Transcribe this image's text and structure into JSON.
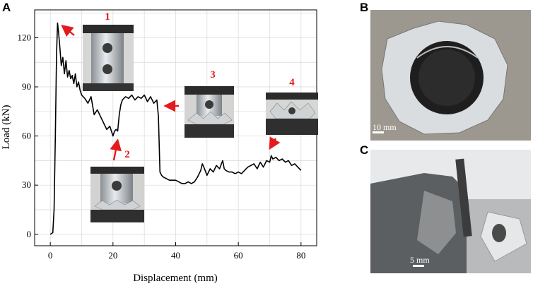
{
  "panels": {
    "a": "A",
    "b": "B",
    "c": "C"
  },
  "chart_data": {
    "type": "line",
    "title": "",
    "xlabel": "Displacement (mm)",
    "ylabel": "Load (kN)",
    "xlim": [
      -5,
      85
    ],
    "ylim": [
      -7,
      137
    ],
    "xticks": [
      0,
      20,
      40,
      60,
      80
    ],
    "yticks": [
      0,
      30,
      60,
      90,
      120
    ],
    "grid": true,
    "series": [
      {
        "color": "#000000",
        "x": [
          0,
          0.8,
          1.2,
          1.6,
          2.0,
          2.3,
          2.6,
          3.0,
          3.5,
          4,
          4.5,
          5,
          5.5,
          6,
          6.5,
          7,
          7.5,
          8,
          8.5,
          9,
          9.5,
          10,
          11,
          12,
          13,
          14,
          15,
          16,
          17,
          18,
          19,
          20,
          20.5,
          21,
          21.5,
          22,
          22.5,
          23,
          24,
          25,
          26,
          27,
          28,
          29,
          30,
          31,
          32,
          33,
          34,
          34.5,
          35,
          35.5,
          36,
          38,
          40,
          42,
          43,
          44,
          45,
          46,
          47,
          48,
          48.5,
          49,
          50,
          51,
          52,
          53,
          54,
          55,
          55.5,
          56,
          57,
          58,
          59,
          60,
          61,
          62,
          63,
          64,
          65,
          66,
          67,
          68,
          69,
          70,
          70.5,
          71,
          72,
          73,
          74,
          75,
          76,
          77,
          78,
          79,
          80
        ],
        "y": [
          0,
          1,
          15,
          60,
          110,
          129,
          124,
          115,
          103,
          108,
          98,
          106,
          96,
          100,
          95,
          97,
          92,
          98,
          90,
          93,
          88,
          85,
          83,
          80,
          84,
          73,
          76,
          72,
          68,
          64,
          66,
          60,
          63,
          64,
          63,
          73,
          79,
          82,
          84,
          83,
          85,
          82,
          84,
          83,
          85,
          81,
          84,
          80,
          82,
          72,
          38,
          36,
          35,
          33,
          33,
          31,
          31,
          32,
          31,
          32,
          35,
          39,
          43,
          41,
          36,
          40,
          38,
          42,
          40,
          45,
          40,
          39,
          38,
          38,
          37,
          38,
          37,
          39,
          41,
          42,
          43,
          40,
          44,
          41,
          45,
          44,
          48,
          46,
          47,
          45,
          46,
          44,
          45,
          42,
          43,
          41,
          39
        ]
      }
    ],
    "annotations": [
      {
        "label": "1",
        "arrow_to": [
          2.5,
          128
        ]
      },
      {
        "label": "2",
        "arrow_to": [
          21,
          60
        ]
      },
      {
        "label": "3",
        "arrow_to": [
          35,
          81
        ]
      },
      {
        "label": "4",
        "arrow_to": [
          70,
          50
        ]
      }
    ],
    "tick_labels_x": [
      "0",
      "20",
      "40",
      "60",
      "80"
    ],
    "tick_labels_y": [
      "0",
      "30",
      "60",
      "90",
      "120"
    ]
  },
  "photo_b": {
    "scale_label": "10 mm"
  },
  "photo_c": {
    "scale_label": "5 mm"
  },
  "colors": {
    "annotation": "#e41a1c",
    "line": "#000000",
    "grid": "#d8d8d8"
  }
}
